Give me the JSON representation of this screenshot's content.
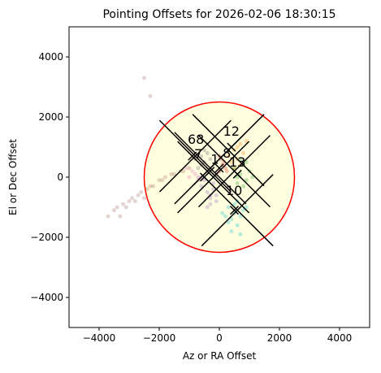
{
  "chart_data": {
    "type": "scatter",
    "title": "Pointing Offsets for 2026-02-06 18:30:15",
    "x_label": "Az or RA Offset",
    "y_label": "El or Dec Offset",
    "xlim": [
      -5000,
      5000
    ],
    "ylim": [
      -5000,
      5000
    ],
    "xticks": [
      {
        "value": -4000,
        "label": "−4000"
      },
      {
        "value": -2000,
        "label": "−2000"
      },
      0,
      2000,
      4000
    ],
    "yticks": [
      {
        "value": -4000,
        "label": "−4000"
      },
      {
        "value": -2000,
        "label": "−2000"
      },
      0,
      2000,
      4000
    ],
    "grid": false,
    "circle": {
      "x": 0,
      "y": 0,
      "r": 2500,
      "color": "#ff0000",
      "fill": "#ffffe0"
    },
    "series": [
      {
        "color": "#8c564b",
        "alpha": 0.25,
        "x": [
          -3500,
          -3400,
          -3300,
          -3200,
          -3000,
          -2900,
          -2800,
          -2700,
          -2600,
          -2400,
          -2300,
          -2200,
          -2000,
          -1900,
          -1800,
          -1600,
          -1500,
          -1300,
          -1200,
          -1000,
          -3700,
          -3100,
          -2500,
          -2500,
          -2300
        ],
        "values": [
          -1100,
          -1000,
          -1300,
          -900,
          -800,
          -700,
          -800,
          -600,
          -500,
          -400,
          -300,
          -300,
          -100,
          -100,
          0,
          100,
          100,
          200,
          200,
          300,
          -1300,
          -1000,
          3300,
          -700,
          2700
        ]
      },
      {
        "color": "#9467bd",
        "alpha": 0.3,
        "x": [
          -600,
          -400,
          -300,
          -200,
          -100,
          -500,
          -300,
          -200,
          -400,
          -700,
          -100,
          -300
        ],
        "values": [
          -300,
          -500,
          -700,
          -400,
          -600,
          -100,
          -900,
          -200,
          -1000,
          0,
          -800,
          -600
        ]
      },
      {
        "color": "#ff7f0e",
        "alpha": 0.3,
        "x": [
          300,
          500,
          600,
          700,
          800,
          400,
          900,
          500,
          600,
          700
        ],
        "values": [
          700,
          900,
          600,
          1100,
          800,
          500,
          1200,
          300,
          1000,
          400
        ]
      },
      {
        "color": "#2ca02c",
        "alpha": 0.3,
        "x": [
          500,
          700,
          800,
          900,
          1000,
          600,
          800,
          700,
          900,
          1100,
          600
        ],
        "values": [
          300,
          100,
          400,
          -100,
          200,
          -200,
          -300,
          600,
          500,
          0,
          0
        ]
      },
      {
        "color": "#17becf",
        "alpha": 0.3,
        "x": [
          100,
          300,
          400,
          500,
          600,
          700,
          800,
          200,
          400,
          600,
          900,
          300,
          500,
          700
        ],
        "values": [
          -1200,
          -1000,
          -1400,
          -900,
          -1600,
          -1300,
          -1100,
          -1300,
          -1800,
          -800,
          -1000,
          -1500,
          -1200,
          -1900
        ]
      },
      {
        "color": "#7f7f7f",
        "alpha": 0.35,
        "x": [
          -800,
          -600,
          -500,
          -400,
          -700,
          -300,
          -500,
          -600
        ],
        "values": [
          600,
          700,
          500,
          800,
          300,
          600,
          900,
          400
        ]
      },
      {
        "color": "#d62728",
        "alpha": 0.3,
        "x": [
          0,
          100,
          200,
          -100,
          150,
          50,
          250,
          0
        ],
        "values": [
          200,
          400,
          300,
          100,
          500,
          600,
          200,
          700
        ]
      },
      {
        "color": "#e377c2",
        "alpha": 0.3,
        "x": [
          -1000,
          -900,
          -800,
          -700,
          -1100,
          -600
        ],
        "values": [
          0,
          200,
          100,
          -100,
          300,
          0
        ]
      },
      {
        "color": "#000000",
        "marker": "X",
        "x": [
          -800,
          300,
          -300,
          600,
          500,
          -200
        ],
        "values": [
          700,
          900,
          300,
          -1100,
          200,
          0
        ]
      },
      {
        "color": "#000000",
        "marker": "x",
        "x": [
          400,
          -900,
          500,
          600,
          -300,
          0,
          -500
        ],
        "values": [
          1000,
          700,
          -1100,
          100,
          200,
          300,
          0
        ]
      }
    ],
    "annotations": [
      {
        "text": "12",
        "x": 400,
        "y": 1380
      },
      {
        "text": "68",
        "x": -780,
        "y": 1110
      },
      {
        "text": "7",
        "x": -700,
        "y": 620
      },
      {
        "text": "1",
        "x": -150,
        "y": 450
      },
      {
        "text": "8",
        "x": 250,
        "y": 650
      },
      {
        "text": "13",
        "x": 600,
        "y": 350
      },
      {
        "text": "10",
        "x": 490,
        "y": -600
      }
    ]
  }
}
